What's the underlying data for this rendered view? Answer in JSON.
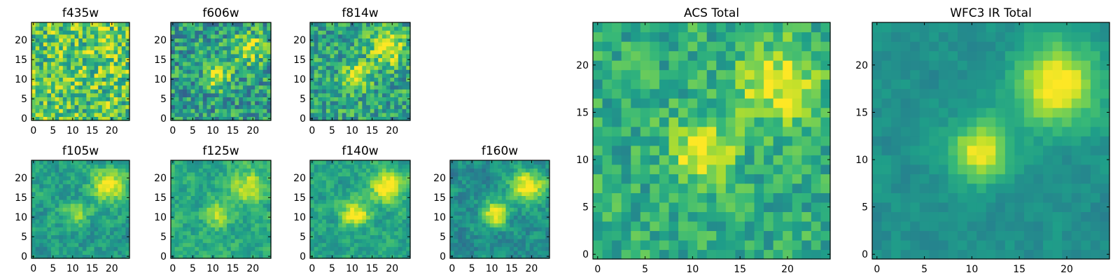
{
  "colors": {
    "colormap": "viridis",
    "frame": "#000000",
    "background": "#ffffff"
  },
  "chart_data": [
    {
      "type": "heatmap",
      "title": "f435w",
      "xlim": [
        0,
        24
      ],
      "ylim": [
        0,
        24
      ],
      "x_ticks": [
        "0",
        "5",
        "10",
        "15",
        "20"
      ],
      "y_ticks": [
        "0",
        "5",
        "10",
        "15",
        "20"
      ],
      "grid": false,
      "description": "noisy image, little structure"
    },
    {
      "type": "heatmap",
      "title": "f606w",
      "xlim": [
        0,
        24
      ],
      "ylim": [
        0,
        24
      ],
      "x_ticks": [
        "0",
        "5",
        "10",
        "15",
        "20"
      ],
      "y_ticks": [
        "0",
        "5",
        "10",
        "15",
        "20"
      ],
      "grid": false
    },
    {
      "type": "heatmap",
      "title": "f814w",
      "xlim": [
        0,
        24
      ],
      "ylim": [
        0,
        24
      ],
      "x_ticks": [
        "0",
        "5",
        "10",
        "15",
        "20"
      ],
      "y_ticks": [
        "0",
        "5",
        "10",
        "15",
        "20"
      ],
      "grid": false
    },
    {
      "type": "heatmap",
      "title": "f105w",
      "xlim": [
        0,
        24
      ],
      "ylim": [
        0,
        24
      ],
      "x_ticks": [
        "0",
        "5",
        "10",
        "15",
        "20"
      ],
      "y_ticks": [
        "0",
        "5",
        "10",
        "15",
        "20"
      ],
      "grid": false
    },
    {
      "type": "heatmap",
      "title": "f125w",
      "xlim": [
        0,
        24
      ],
      "ylim": [
        0,
        24
      ],
      "x_ticks": [
        "0",
        "5",
        "10",
        "15",
        "20"
      ],
      "y_ticks": [
        "0",
        "5",
        "10",
        "15",
        "20"
      ],
      "grid": false
    },
    {
      "type": "heatmap",
      "title": "f140w",
      "xlim": [
        0,
        24
      ],
      "ylim": [
        0,
        24
      ],
      "x_ticks": [
        "0",
        "5",
        "10",
        "15",
        "20"
      ],
      "y_ticks": [
        "0",
        "5",
        "10",
        "15",
        "20"
      ],
      "grid": false
    },
    {
      "type": "heatmap",
      "title": "f160w",
      "xlim": [
        0,
        24
      ],
      "ylim": [
        0,
        24
      ],
      "x_ticks": [
        "0",
        "5",
        "10",
        "15",
        "20"
      ],
      "y_ticks": [
        "0",
        "5",
        "10",
        "15",
        "20"
      ],
      "grid": false
    },
    {
      "type": "heatmap",
      "title": "ACS Total",
      "xlim": [
        0,
        24
      ],
      "ylim": [
        0,
        24
      ],
      "x_ticks": [
        "0",
        "5",
        "10",
        "15",
        "20"
      ],
      "y_ticks": [
        "0",
        "5",
        "10",
        "15",
        "20"
      ],
      "grid": false
    },
    {
      "type": "heatmap",
      "title": "WFC3 IR Total",
      "xlim": [
        0,
        24
      ],
      "ylim": [
        0,
        24
      ],
      "x_ticks": [
        "0",
        "5",
        "10",
        "15",
        "20"
      ],
      "y_ticks": [
        "0",
        "5",
        "10",
        "15",
        "20"
      ],
      "grid": false
    }
  ]
}
